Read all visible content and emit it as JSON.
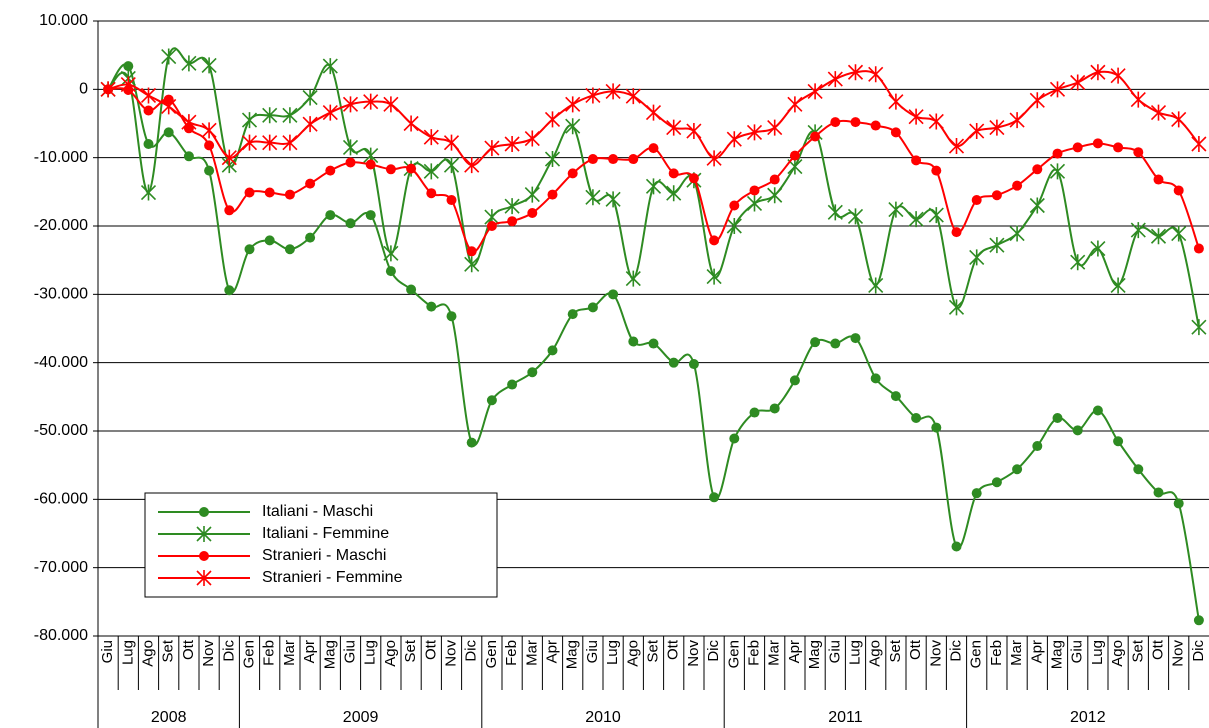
{
  "chart_data": {
    "type": "line",
    "category_groups": [
      {
        "label": "2008",
        "categories": [
          "Giu",
          "Lug",
          "Ago",
          "Set",
          "Ott",
          "Nov",
          "Dic"
        ]
      },
      {
        "label": "2009",
        "categories": [
          "Gen",
          "Feb",
          "Mar",
          "Apr",
          "Mag",
          "Giu",
          "Lug",
          "Ago",
          "Set",
          "Ott",
          "Nov",
          "Dic"
        ]
      },
      {
        "label": "2010",
        "categories": [
          "Gen",
          "Feb",
          "Mar",
          "Apr",
          "Mag",
          "Giu",
          "Lug",
          "Ago",
          "Set",
          "Ott",
          "Nov",
          "Dic"
        ]
      },
      {
        "label": "2011",
        "categories": [
          "Gen",
          "Feb",
          "Mar",
          "Apr",
          "Mag",
          "Giu",
          "Lug",
          "Ago",
          "Set",
          "Ott",
          "Nov",
          "Dic"
        ]
      },
      {
        "label": "2012",
        "categories": [
          "Gen",
          "Feb",
          "Mar",
          "Apr",
          "Mag",
          "Giu",
          "Lug",
          "Ago",
          "Set",
          "Ott",
          "Nov",
          "Dic"
        ]
      }
    ],
    "series": [
      {
        "name": "Italiani - Maschi",
        "color": "#2e8b22",
        "marker": "circle",
        "values": [
          0,
          3400,
          -8000,
          -6300,
          -9800,
          -11900,
          -29400,
          -23400,
          -22100,
          -23400,
          -21700,
          -18400,
          -19600,
          -18400,
          -26600,
          -29300,
          -31800,
          -33200,
          -51700,
          -45500,
          -43200,
          -41400,
          -38200,
          -32900,
          -31900,
          -30000,
          -36900,
          -37200,
          -40000,
          -40200,
          -59700,
          -51100,
          -47300,
          -46700,
          -42600,
          -37000,
          -37200,
          -36400,
          -42300,
          -44900,
          -48100,
          -49500,
          -66900,
          -59100,
          -57500,
          -55600,
          -52200,
          -48100,
          -49900,
          -47000,
          -51500,
          -55600,
          -59000,
          -60600,
          -77700
        ]
      },
      {
        "name": "Italiani - Femmine",
        "color": "#2e8b22",
        "marker": "star",
        "values": [
          0,
          1600,
          -15100,
          4800,
          3800,
          3500,
          -11100,
          -4500,
          -3800,
          -3800,
          -1200,
          3400,
          -8500,
          -9700,
          -24000,
          -11600,
          -12000,
          -11100,
          -25600,
          -18700,
          -17100,
          -15400,
          -10200,
          -5400,
          -15800,
          -16100,
          -27700,
          -14200,
          -15200,
          -13300,
          -27400,
          -20000,
          -16700,
          -15500,
          -11300,
          -6300,
          -18000,
          -18600,
          -28700,
          -17600,
          -19000,
          -18400,
          -31900,
          -24600,
          -22800,
          -21100,
          -17000,
          -12000,
          -25300,
          -23300,
          -28700,
          -20600,
          -21500,
          -21100,
          -34800
        ]
      },
      {
        "name": "Stranieri - Maschi",
        "color": "#ff0000",
        "marker": "circle",
        "values": [
          0,
          -100,
          -3100,
          -1500,
          -5700,
          -8200,
          -17700,
          -15100,
          -15100,
          -15400,
          -13800,
          -11900,
          -10700,
          -11000,
          -11700,
          -11600,
          -15200,
          -16200,
          -23700,
          -20000,
          -19300,
          -18100,
          -15400,
          -12300,
          -10200,
          -10200,
          -10200,
          -8600,
          -12300,
          -13000,
          -22100,
          -17000,
          -14800,
          -13200,
          -9700,
          -6900,
          -4800,
          -4800,
          -5300,
          -6300,
          -10400,
          -11900,
          -20900,
          -16200,
          -15500,
          -14100,
          -11700,
          -9400,
          -8500,
          -7900,
          -8500,
          -9200,
          -13200,
          -14800,
          -23300
        ]
      },
      {
        "name": "Stranieri - Femmine",
        "color": "#ff0000",
        "marker": "star",
        "values": [
          0,
          700,
          -900,
          -2500,
          -4800,
          -6000,
          -10000,
          -7800,
          -7800,
          -7800,
          -5100,
          -3400,
          -2200,
          -1800,
          -2200,
          -5000,
          -7000,
          -7800,
          -11100,
          -8600,
          -8000,
          -7200,
          -4400,
          -2200,
          -900,
          -300,
          -1000,
          -3400,
          -5600,
          -6100,
          -10100,
          -7300,
          -6300,
          -5600,
          -2200,
          -300,
          1500,
          2500,
          2200,
          -1800,
          -4000,
          -4700,
          -8300,
          -6100,
          -5600,
          -4500,
          -1600,
          0,
          1000,
          2500,
          2000,
          -1500,
          -3400,
          -4400,
          -8000
        ]
      }
    ],
    "ylim": [
      -80000,
      10000
    ],
    "yticks": [
      {
        "value": -80000,
        "label": "-80.000"
      },
      {
        "value": -70000,
        "label": "-70.000"
      },
      {
        "value": -60000,
        "label": "-60.000"
      },
      {
        "value": -50000,
        "label": "-50.000"
      },
      {
        "value": -40000,
        "label": "-40.000"
      },
      {
        "value": -30000,
        "label": "-30.000"
      },
      {
        "value": -20000,
        "label": "-20.000"
      },
      {
        "value": -10000,
        "label": "-10.000"
      },
      0,
      {
        "value": 10000,
        "label": "10.000"
      }
    ],
    "grid": true,
    "legend": "lower left"
  }
}
